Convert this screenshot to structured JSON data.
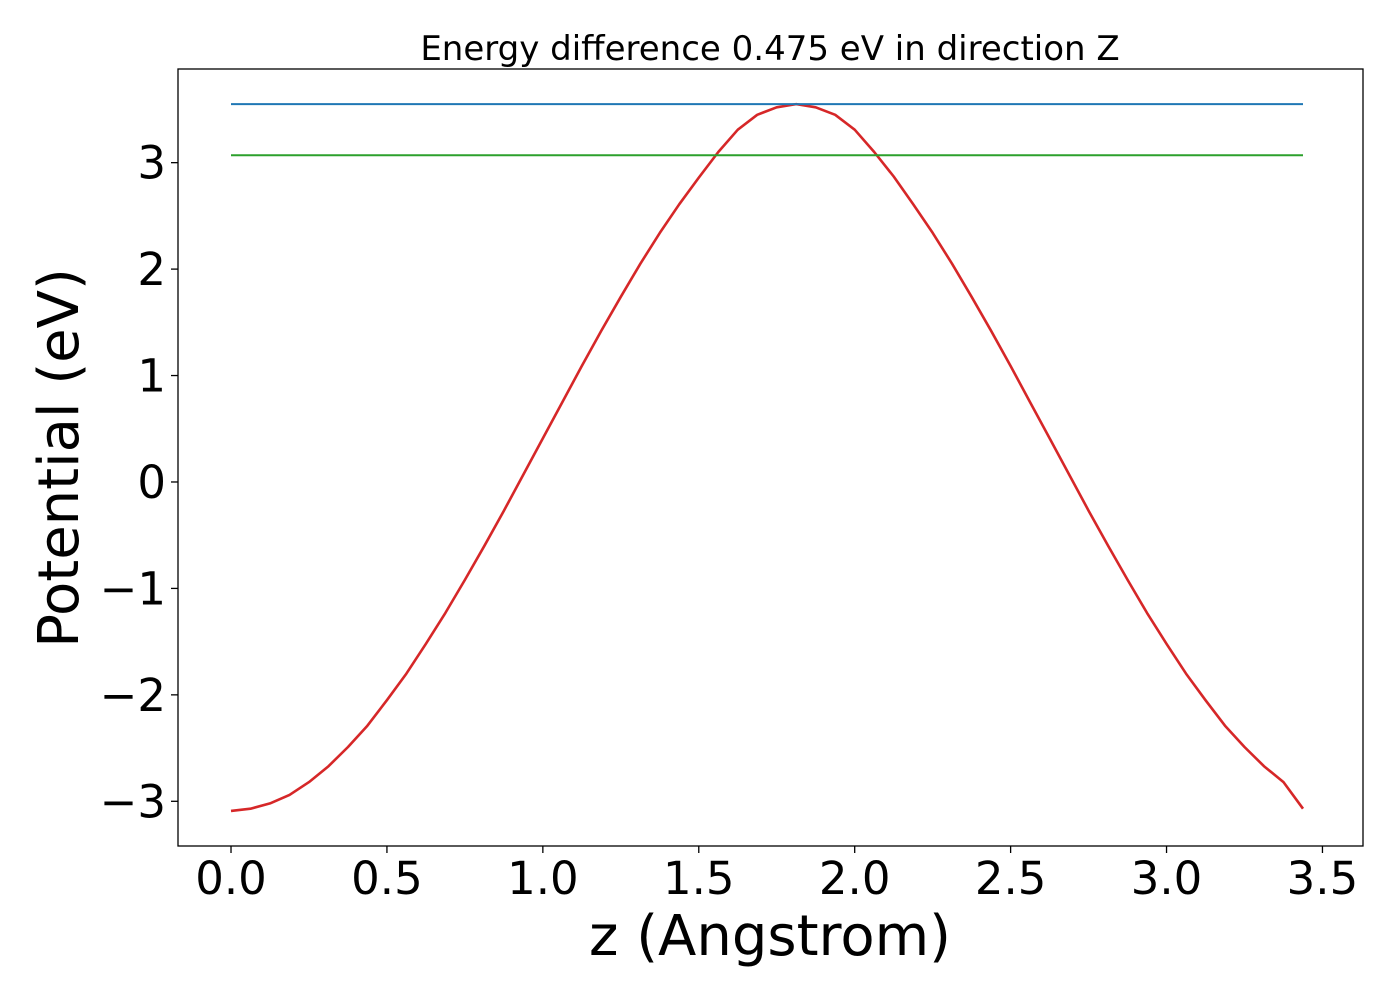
{
  "chart_data": {
    "type": "line",
    "title": "Energy difference 0.475 eV in direction Z",
    "xlabel": "z (Angstrom)",
    "ylabel": "Potential (eV)",
    "xlim": [
      -0.17,
      3.63
    ],
    "ylim": [
      -3.42,
      3.88
    ],
    "xticks": [
      0.0,
      0.5,
      1.0,
      1.5,
      2.0,
      2.5,
      3.0,
      3.5
    ],
    "xtick_labels": [
      "0.0",
      "0.5",
      "1.0",
      "1.5",
      "2.0",
      "2.5",
      "3.0",
      "3.5"
    ],
    "yticks": [
      -3,
      -2,
      -1,
      0,
      1,
      2,
      3
    ],
    "ytick_labels": [
      "−3",
      "−2",
      "−1",
      "0",
      "1",
      "2",
      "3"
    ],
    "grid": false,
    "series": [
      {
        "color": "#d62728",
        "x": [
          0.0,
          0.0625,
          0.125,
          0.1875,
          0.25,
          0.3125,
          0.375,
          0.4375,
          0.5,
          0.5625,
          0.625,
          0.6875,
          0.75,
          0.8125,
          0.875,
          0.9375,
          1.0,
          1.0625,
          1.125,
          1.1875,
          1.25,
          1.3125,
          1.375,
          1.4375,
          1.5,
          1.5625,
          1.625,
          1.6875,
          1.75,
          1.8125,
          1.875,
          1.9375,
          2.0,
          2.0625,
          2.125,
          2.1875,
          2.25,
          2.3125,
          2.375,
          2.4375,
          2.5,
          2.5625,
          2.625,
          2.6875,
          2.75,
          2.8125,
          2.875,
          2.9375,
          3.0,
          3.0625,
          3.125,
          3.1875,
          3.25,
          3.3125,
          3.375,
          3.4375
        ],
        "y": [
          -3.09,
          -3.07,
          -3.02,
          -2.94,
          -2.82,
          -2.67,
          -2.49,
          -2.29,
          -2.05,
          -1.8,
          -1.52,
          -1.23,
          -0.92,
          -0.6,
          -0.27,
          0.07,
          0.41,
          0.75,
          1.09,
          1.42,
          1.74,
          2.05,
          2.34,
          2.61,
          2.86,
          3.1,
          3.31,
          3.45,
          3.52,
          3.55,
          3.52,
          3.45,
          3.31,
          3.1,
          2.87,
          2.61,
          2.34,
          2.05,
          1.74,
          1.42,
          1.09,
          0.75,
          0.41,
          0.07,
          -0.27,
          -0.6,
          -0.92,
          -1.23,
          -1.52,
          -1.8,
          -2.05,
          -2.29,
          -2.49,
          -2.67,
          -2.82,
          -3.07
        ]
      },
      {
        "color": "#1f77b4",
        "x": [
          0.0,
          3.4375
        ],
        "y": [
          3.55,
          3.55
        ]
      },
      {
        "color": "#2ca02c",
        "x": [
          0.0,
          3.4375
        ],
        "y": [
          3.07,
          3.07
        ]
      }
    ]
  }
}
